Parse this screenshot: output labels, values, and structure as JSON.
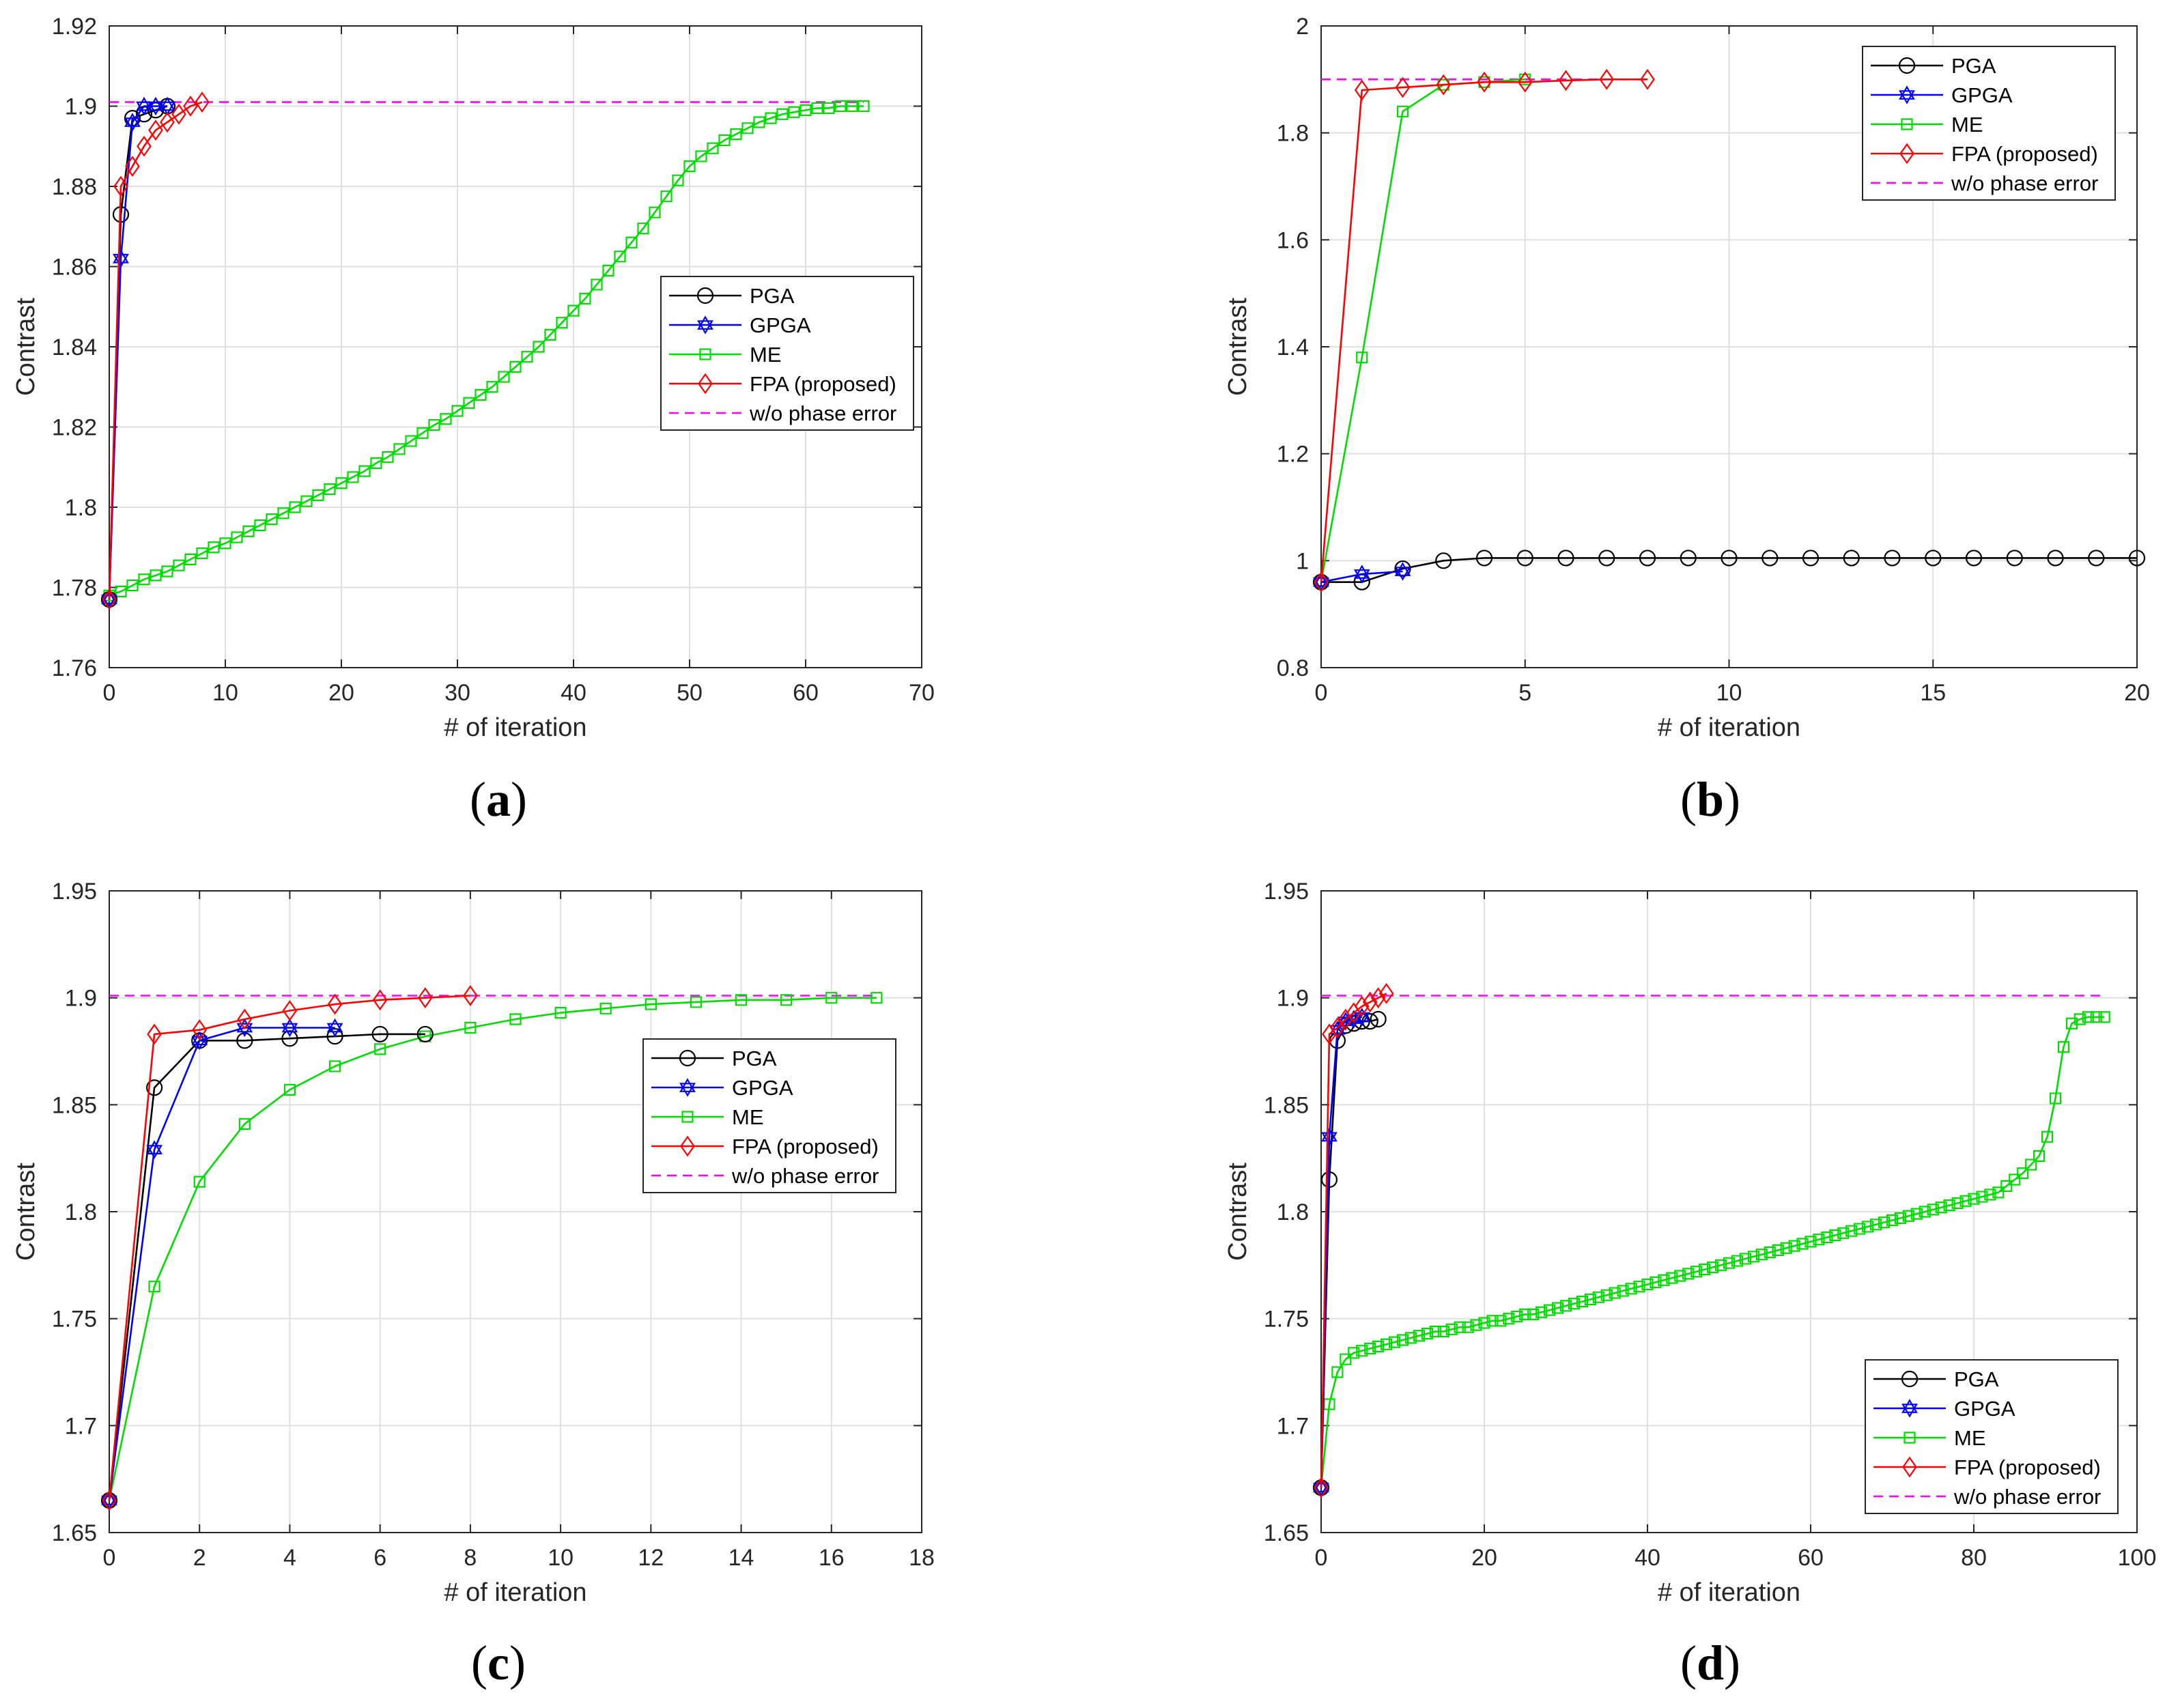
{
  "colors": {
    "PGA": "#000000",
    "GPGA": "#0000ff",
    "ME": "#00dd00",
    "FPA": "#ff0000",
    "ref": "#ff00ff",
    "grid": "#e0e0e0",
    "axis": "#262626"
  },
  "chart_data": [
    {
      "type": "line",
      "panel": "a",
      "panel_label": "(a)",
      "panel_letter": "a",
      "xlabel": "# of iteration",
      "ylabel": "Contrast",
      "xlim": [
        0,
        70
      ],
      "ylim": [
        1.76,
        1.92
      ],
      "xticks": [
        0,
        10,
        20,
        30,
        40,
        50,
        60,
        70
      ],
      "yticks": [
        1.76,
        1.78,
        1.8,
        1.82,
        1.84,
        1.86,
        1.88,
        1.9,
        1.92
      ],
      "ytick_labels": [
        "1.76",
        "1.78",
        "1.8",
        "1.82",
        "1.84",
        "1.86",
        "1.88",
        "1.9",
        "1.92"
      ],
      "legend_position": "center-right",
      "series": [
        {
          "name": "PGA",
          "key": "PGA",
          "marker": "circle",
          "x": [
            0,
            1,
            2,
            3,
            4,
            5
          ],
          "y": [
            1.777,
            1.873,
            1.897,
            1.898,
            1.899,
            1.9
          ]
        },
        {
          "name": "GPGA",
          "key": "GPGA",
          "marker": "hexagram",
          "x": [
            0,
            1,
            2,
            3,
            4,
            5
          ],
          "y": [
            1.777,
            1.862,
            1.896,
            1.9,
            1.9,
            1.9
          ]
        },
        {
          "name": "ME",
          "key": "ME",
          "marker": "square",
          "x": [
            0,
            1,
            2,
            3,
            4,
            5,
            6,
            7,
            8,
            9,
            10,
            11,
            12,
            13,
            14,
            15,
            16,
            17,
            18,
            19,
            20,
            21,
            22,
            23,
            24,
            25,
            26,
            27,
            28,
            29,
            30,
            31,
            32,
            33,
            34,
            35,
            36,
            37,
            38,
            39,
            40,
            41,
            42,
            43,
            44,
            45,
            46,
            47,
            48,
            49,
            50,
            51,
            52,
            53,
            54,
            55,
            56,
            57,
            58,
            59,
            60,
            61,
            62,
            63,
            64,
            65
          ],
          "y": [
            1.778,
            1.779,
            1.7805,
            1.782,
            1.783,
            1.784,
            1.7855,
            1.787,
            1.7885,
            1.79,
            1.791,
            1.7925,
            1.794,
            1.7955,
            1.797,
            1.7985,
            1.8,
            1.8015,
            1.803,
            1.8045,
            1.806,
            1.8075,
            1.809,
            1.811,
            1.8125,
            1.8145,
            1.8165,
            1.8185,
            1.8205,
            1.822,
            1.824,
            1.826,
            1.828,
            1.83,
            1.8325,
            1.835,
            1.8375,
            1.84,
            1.843,
            1.846,
            1.849,
            1.852,
            1.8555,
            1.859,
            1.8625,
            1.866,
            1.8695,
            1.8735,
            1.8775,
            1.8815,
            1.885,
            1.8875,
            1.8895,
            1.8915,
            1.893,
            1.8945,
            1.896,
            1.897,
            1.898,
            1.8985,
            1.899,
            1.8995,
            1.8995,
            1.9,
            1.9,
            1.9
          ]
        },
        {
          "name": "FPA (proposed)",
          "key": "FPA",
          "marker": "diamond",
          "x": [
            0,
            1,
            2,
            3,
            4,
            5,
            6,
            7,
            8
          ],
          "y": [
            1.777,
            1.88,
            1.885,
            1.89,
            1.894,
            1.896,
            1.898,
            1.9,
            1.901
          ]
        },
        {
          "name": "w/o phase error",
          "key": "ref",
          "marker": "none",
          "dashed": true,
          "x": [
            0,
            65
          ],
          "y": [
            1.901,
            1.901
          ]
        }
      ]
    },
    {
      "type": "line",
      "panel": "b",
      "panel_label": "(b)",
      "panel_letter": "b",
      "xlabel": "# of iteration",
      "ylabel": "Contrast",
      "xlim": [
        0,
        20
      ],
      "ylim": [
        0.8,
        2
      ],
      "xticks": [
        0,
        5,
        10,
        15,
        20
      ],
      "yticks": [
        0.8,
        1,
        1.2,
        1.4,
        1.6,
        1.8,
        2
      ],
      "ytick_labels": [
        "0.8",
        "1",
        "1.2",
        "1.4",
        "1.6",
        "1.8",
        "2"
      ],
      "legend_position": "top-right",
      "series": [
        {
          "name": "PGA",
          "key": "PGA",
          "marker": "circle",
          "x": [
            0,
            1,
            2,
            3,
            4,
            5,
            6,
            7,
            8,
            9,
            10,
            11,
            12,
            13,
            14,
            15,
            16,
            17,
            18,
            19,
            20
          ],
          "y": [
            0.96,
            0.96,
            0.985,
            1.0,
            1.005,
            1.005,
            1.005,
            1.005,
            1.005,
            1.005,
            1.005,
            1.005,
            1.005,
            1.005,
            1.005,
            1.005,
            1.005,
            1.005,
            1.005,
            1.005,
            1.005
          ]
        },
        {
          "name": "GPGA",
          "key": "GPGA",
          "marker": "hexagram",
          "x": [
            0,
            1,
            2
          ],
          "y": [
            0.96,
            0.975,
            0.98
          ]
        },
        {
          "name": "ME",
          "key": "ME",
          "marker": "square",
          "x": [
            0,
            1,
            2,
            3,
            4,
            5
          ],
          "y": [
            0.96,
            1.38,
            1.84,
            1.89,
            1.895,
            1.9
          ]
        },
        {
          "name": "FPA (proposed)",
          "key": "FPA",
          "marker": "diamond",
          "x": [
            0,
            1,
            2,
            3,
            4,
            5,
            6,
            7,
            8
          ],
          "y": [
            0.96,
            1.88,
            1.885,
            1.89,
            1.895,
            1.895,
            1.898,
            1.9,
            1.9
          ]
        },
        {
          "name": "w/o phase error",
          "key": "ref",
          "marker": "none",
          "dashed": true,
          "x": [
            0,
            8
          ],
          "y": [
            1.9,
            1.9
          ]
        }
      ]
    },
    {
      "type": "line",
      "panel": "c",
      "panel_label": "(c)",
      "panel_letter": "c",
      "xlabel": "# of iteration",
      "ylabel": "Contrast",
      "xlim": [
        0,
        18
      ],
      "ylim": [
        1.65,
        1.95
      ],
      "xticks": [
        0,
        2,
        4,
        6,
        8,
        10,
        12,
        14,
        16,
        18
      ],
      "yticks": [
        1.65,
        1.7,
        1.75,
        1.8,
        1.85,
        1.9,
        1.95
      ],
      "ytick_labels": [
        "1.65",
        "1.7",
        "1.75",
        "1.8",
        "1.85",
        "1.9",
        "1.95"
      ],
      "legend_position": "center-right",
      "series": [
        {
          "name": "PGA",
          "key": "PGA",
          "marker": "circle",
          "x": [
            0,
            1,
            2,
            3,
            4,
            5,
            6,
            7
          ],
          "y": [
            1.665,
            1.858,
            1.88,
            1.88,
            1.881,
            1.882,
            1.883,
            1.883
          ]
        },
        {
          "name": "GPGA",
          "key": "GPGA",
          "marker": "hexagram",
          "x": [
            0,
            1,
            2,
            3,
            4,
            5
          ],
          "y": [
            1.665,
            1.829,
            1.88,
            1.886,
            1.886,
            1.886
          ]
        },
        {
          "name": "ME",
          "key": "ME",
          "marker": "square",
          "x": [
            0,
            1,
            2,
            3,
            4,
            5,
            6,
            7,
            8,
            9,
            10,
            11,
            12,
            13,
            14,
            15,
            16,
            17
          ],
          "y": [
            1.665,
            1.765,
            1.814,
            1.841,
            1.857,
            1.868,
            1.876,
            1.882,
            1.886,
            1.89,
            1.893,
            1.895,
            1.897,
            1.898,
            1.899,
            1.899,
            1.9,
            1.9
          ]
        },
        {
          "name": "FPA (proposed)",
          "key": "FPA",
          "marker": "diamond",
          "x": [
            0,
            1,
            2,
            3,
            4,
            5,
            6,
            7,
            8
          ],
          "y": [
            1.665,
            1.883,
            1.885,
            1.89,
            1.894,
            1.897,
            1.899,
            1.9,
            1.901
          ]
        },
        {
          "name": "w/o phase error",
          "key": "ref",
          "marker": "none",
          "dashed": true,
          "x": [
            0,
            17
          ],
          "y": [
            1.901,
            1.901
          ]
        }
      ]
    },
    {
      "type": "line",
      "panel": "d",
      "panel_label": "(d)",
      "panel_letter": "d",
      "xlabel": "# of iteration",
      "ylabel": "Contrast",
      "xlim": [
        0,
        100
      ],
      "ylim": [
        1.65,
        1.95
      ],
      "xticks": [
        0,
        20,
        40,
        60,
        80,
        100
      ],
      "yticks": [
        1.65,
        1.7,
        1.75,
        1.8,
        1.85,
        1.9,
        1.95
      ],
      "ytick_labels": [
        "1.65",
        "1.7",
        "1.75",
        "1.8",
        "1.85",
        "1.9",
        "1.95"
      ],
      "legend_position": "bottom-right",
      "series": [
        {
          "name": "PGA",
          "key": "PGA",
          "marker": "circle",
          "x": [
            0,
            1,
            2,
            3,
            4,
            5,
            6,
            7
          ],
          "y": [
            1.671,
            1.815,
            1.88,
            1.887,
            1.888,
            1.889,
            1.889,
            1.89
          ]
        },
        {
          "name": "GPGA",
          "key": "GPGA",
          "marker": "hexagram",
          "x": [
            0,
            1,
            2,
            3,
            4,
            5
          ],
          "y": [
            1.671,
            1.835,
            1.885,
            1.889,
            1.89,
            1.891
          ]
        },
        {
          "name": "ME",
          "key": "ME",
          "marker": "square",
          "x": [
            0,
            1,
            2,
            3,
            4,
            5,
            6,
            7,
            8,
            9,
            10,
            11,
            12,
            13,
            14,
            15,
            16,
            17,
            18,
            19,
            20,
            21,
            22,
            23,
            24,
            25,
            26,
            27,
            28,
            29,
            30,
            31,
            32,
            33,
            34,
            35,
            36,
            37,
            38,
            39,
            40,
            41,
            42,
            43,
            44,
            45,
            46,
            47,
            48,
            49,
            50,
            51,
            52,
            53,
            54,
            55,
            56,
            57,
            58,
            59,
            60,
            61,
            62,
            63,
            64,
            65,
            66,
            67,
            68,
            69,
            70,
            71,
            72,
            73,
            74,
            75,
            76,
            77,
            78,
            79,
            80,
            81,
            82,
            83,
            84,
            85,
            86,
            87,
            88,
            89,
            90,
            91,
            92,
            93,
            94,
            95,
            96
          ],
          "y": [
            1.671,
            1.71,
            1.725,
            1.731,
            1.734,
            1.735,
            1.736,
            1.737,
            1.738,
            1.739,
            1.74,
            1.741,
            1.742,
            1.743,
            1.744,
            1.744,
            1.745,
            1.746,
            1.746,
            1.747,
            1.748,
            1.749,
            1.749,
            1.75,
            1.751,
            1.752,
            1.752,
            1.753,
            1.754,
            1.755,
            1.756,
            1.757,
            1.758,
            1.759,
            1.76,
            1.761,
            1.762,
            1.763,
            1.764,
            1.765,
            1.766,
            1.767,
            1.768,
            1.769,
            1.77,
            1.771,
            1.772,
            1.773,
            1.774,
            1.775,
            1.776,
            1.777,
            1.778,
            1.779,
            1.78,
            1.781,
            1.782,
            1.783,
            1.784,
            1.785,
            1.786,
            1.787,
            1.788,
            1.789,
            1.79,
            1.791,
            1.792,
            1.793,
            1.794,
            1.795,
            1.796,
            1.797,
            1.798,
            1.799,
            1.8,
            1.801,
            1.802,
            1.803,
            1.804,
            1.805,
            1.806,
            1.807,
            1.808,
            1.809,
            1.812,
            1.815,
            1.818,
            1.822,
            1.826,
            1.835,
            1.853,
            1.877,
            1.888,
            1.89,
            1.891,
            1.891,
            1.891
          ]
        },
        {
          "name": "FPA (proposed)",
          "key": "FPA",
          "marker": "diamond",
          "x": [
            0,
            1,
            2,
            3,
            4,
            5,
            6,
            7,
            8
          ],
          "y": [
            1.671,
            1.883,
            1.886,
            1.89,
            1.893,
            1.896,
            1.898,
            1.9,
            1.902
          ]
        },
        {
          "name": "w/o phase error",
          "key": "ref",
          "marker": "none",
          "dashed": true,
          "x": [
            0,
            96
          ],
          "y": [
            1.901,
            1.901
          ]
        }
      ]
    }
  ]
}
